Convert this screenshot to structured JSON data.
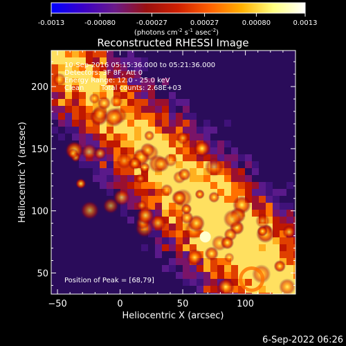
{
  "chart_data": {
    "type": "heatmap",
    "title": "Reconstructed RHESSI Image",
    "xlabel": "Heliocentric X (arcsec)",
    "ylabel": "Heliocentric Y (arcsec)",
    "xlim": [
      -55,
      140
    ],
    "ylim": [
      33,
      229
    ],
    "x_ticks": [
      -50,
      0,
      50,
      100
    ],
    "y_ticks": [
      50,
      100,
      150,
      200
    ],
    "colorbar": {
      "label_main": "(photons cm",
      "label_sup1": "-2",
      "label_mid1": " s",
      "label_sup2": "-1",
      "label_mid2": " asec",
      "label_sup3": "-2",
      "label_end": ")",
      "range": [
        -0.0013,
        0.0013
      ],
      "tick_values": [
        -0.0013,
        -0.0008,
        -0.00027,
        0.00027,
        0.0008,
        0.0013
      ],
      "tick_labels": [
        "-0.0013",
        "-0.00080",
        "-0.00027",
        "0.00027",
        "0.00080",
        "0.0013"
      ],
      "colormap": [
        "#0000ff",
        "#3a00c8",
        "#6a1a8a",
        "#9a1010",
        "#d02000",
        "#ff6000",
        "#ffb000",
        "#ffff80",
        "#ffffff"
      ]
    },
    "annotations": {
      "time_range": "10-Sep-2016 05:15:36.000 to 05:21:36.000",
      "detectors": "Detectors: 3F 8F, Att 0",
      "energy": "Energy Range: 12.0 - 25.0 keV",
      "method": "Clean",
      "counts": "Total counts: 2.68E+03",
      "peak": "Position of Peak = [68,79]"
    },
    "peak_position": [
      68,
      79
    ],
    "grid": false
  },
  "footer": {
    "timestamp": "6-Sep-2022 06:26"
  }
}
